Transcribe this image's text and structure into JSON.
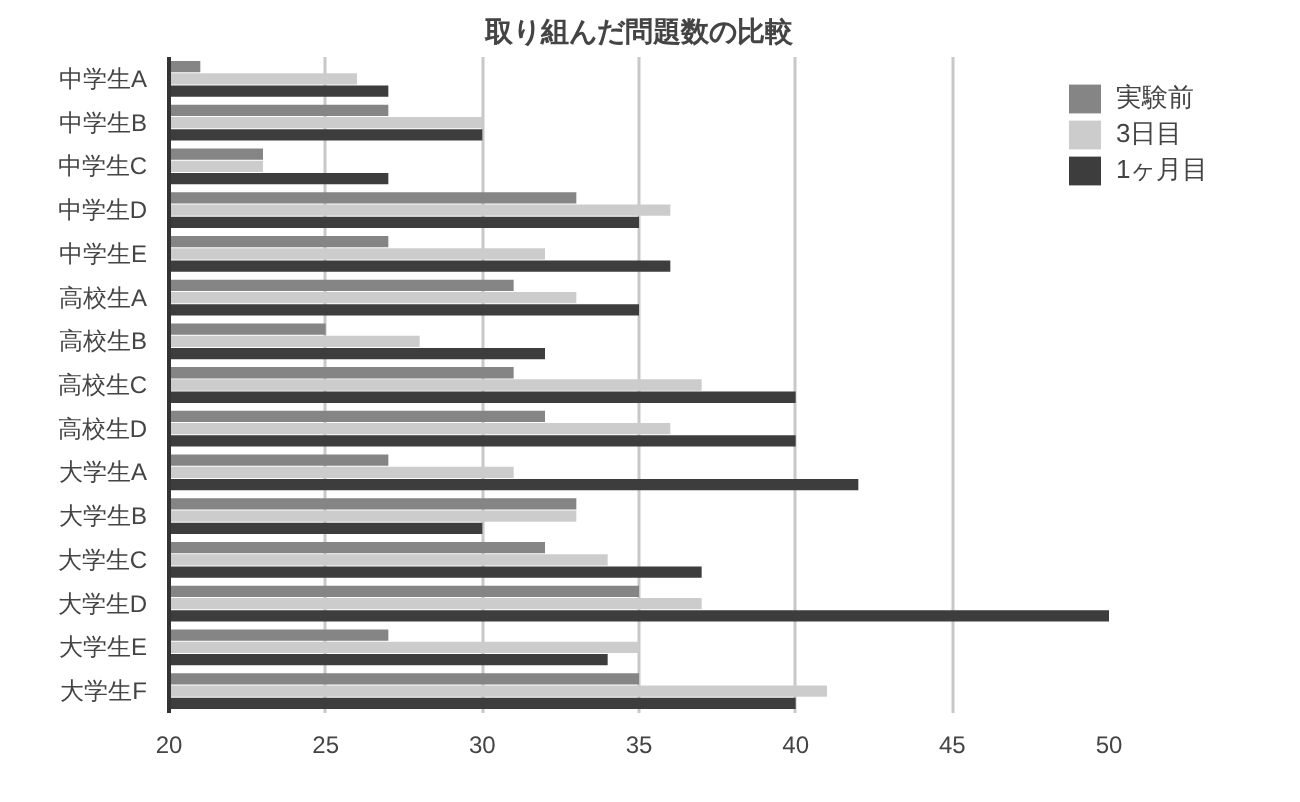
{
  "chart_data": {
    "type": "bar",
    "orientation": "horizontal",
    "title": "取り組んだ問題数の比較",
    "categories": [
      "中学生A",
      "中学生B",
      "中学生C",
      "中学生D",
      "中学生E",
      "高校生A",
      "高校生B",
      "高校生C",
      "高校生D",
      "大学生A",
      "大学生B",
      "大学生C",
      "大学生D",
      "大学生E",
      "大学生F"
    ],
    "series": [
      {
        "name": "実験前",
        "color": "#858585",
        "values": [
          21,
          27,
          23,
          33,
          27,
          31,
          25,
          31,
          32,
          27,
          33,
          32,
          35,
          27,
          35
        ]
      },
      {
        "name": "3日目",
        "color": "#cbcccb",
        "values": [
          26,
          30,
          23,
          36,
          32,
          33,
          28,
          37,
          36,
          31,
          33,
          34,
          37,
          35,
          41
        ]
      },
      {
        "name": "1ヶ月目",
        "color": "#3d3d3d",
        "values": [
          27,
          30,
          27,
          35,
          36,
          35,
          32,
          40,
          40,
          42,
          30,
          37,
          50,
          34,
          40
        ]
      }
    ],
    "xlim": [
      20,
      50
    ],
    "xticks": [
      20,
      25,
      30,
      35,
      40,
      45,
      50
    ],
    "grid": "x",
    "legend": "right"
  }
}
